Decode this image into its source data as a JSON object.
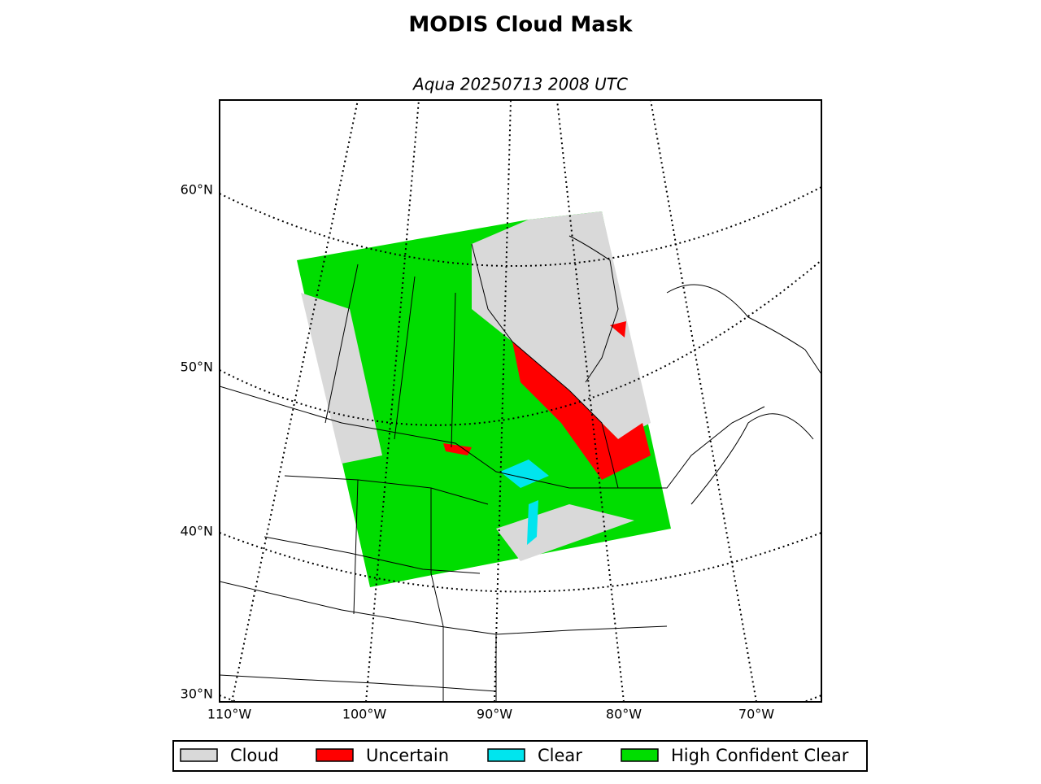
{
  "title": "MODIS Cloud Mask",
  "subtitle": "Aqua 20250713 2008 UTC",
  "map": {
    "lat_labels": [
      "60°N",
      "50°N",
      "40°N",
      "30°N"
    ],
    "lon_labels": [
      "110°W",
      "100°W",
      "90°W",
      "80°W",
      "70°W"
    ]
  },
  "legend": [
    {
      "label": "Cloud",
      "color": "#d9d9d9"
    },
    {
      "label": "Uncertain",
      "color": "#ff0000"
    },
    {
      "label": "Clear",
      "color": "#00e5ee"
    },
    {
      "label": "High Confident Clear",
      "color": "#00dd00"
    }
  ]
}
